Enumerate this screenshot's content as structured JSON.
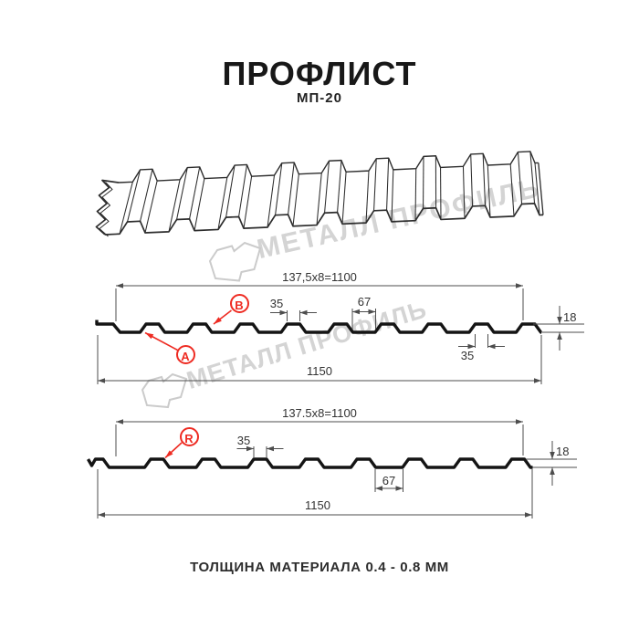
{
  "page": {
    "title": "ПРОФЛИСТ",
    "subtitle": "МП-20",
    "footer": "ТОЛЩИНА МАТЕРИАЛА 0.4 - 0.8 ММ"
  },
  "watermark": {
    "brand": "МЕТАЛЛ ПРОФИЛЬ"
  },
  "colors": {
    "red": "#ee2b22",
    "dim_line": "#4d4d4d",
    "profile_line": "#141414",
    "sketch_line": "#2d2d2d",
    "watermark_line": "#cbcbcb",
    "dim_text": "#333333"
  },
  "section_top": {
    "labels": {
      "a": "A",
      "b": "B"
    },
    "dims": {
      "working_width": "137,5x8=1100",
      "rib_top_width": "35",
      "rib_bottom_width": "67",
      "profile_height": "18",
      "rib_top_width_right": "35",
      "overall_width": "1150"
    }
  },
  "section_bottom": {
    "labels": {
      "r": "R"
    },
    "dims": {
      "working_width": "137.5x8=1100",
      "rib_top_width": "35",
      "rib_bottom_width": "67",
      "profile_height": "18",
      "overall_width": "1150"
    }
  }
}
